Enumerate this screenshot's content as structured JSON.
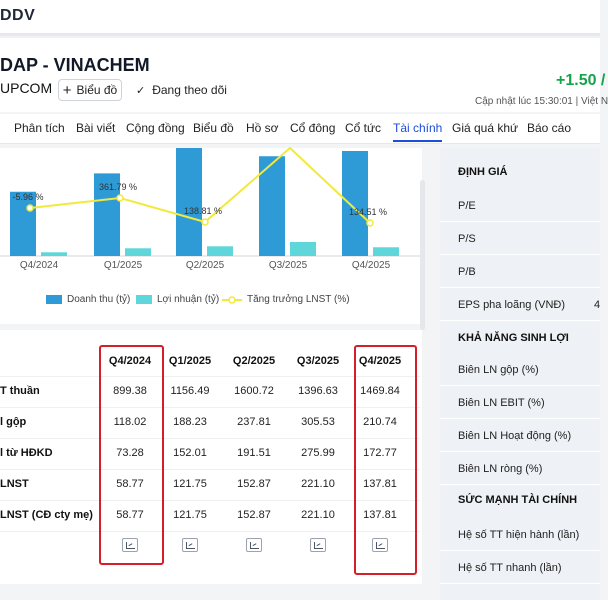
{
  "topbar": {
    "ticker": "DDV"
  },
  "header": {
    "company": "DAP - VINACHEM",
    "exchange": "UPCOM",
    "chart_button": "Biểu đồ",
    "follow_label": "Đang theo dõi",
    "price_change": "+1.50 /",
    "updated": "Cập nhật lúc  15:30:01 | Việt N"
  },
  "tabs": [
    {
      "label": "Phân tích"
    },
    {
      "label": "Bài viết"
    },
    {
      "label": "Cộng đồng"
    },
    {
      "label": "Biểu đồ"
    },
    {
      "label": "Hồ sơ"
    },
    {
      "label": "Cổ đông"
    },
    {
      "label": "Cổ tức"
    },
    {
      "label": "Tài chính",
      "active": true
    },
    {
      "label": "Giá quá khứ"
    },
    {
      "label": "Báo cáo"
    }
  ],
  "chart_data": {
    "type": "bar",
    "categories": [
      "Q4/2024",
      "Q1/2025",
      "Q2/2025",
      "Q3/2025",
      "Q4/2025"
    ],
    "series": [
      {
        "name": "Doanh thu (tỷ)",
        "values": [
          899.38,
          1156.49,
          1600.72,
          1396.63,
          1469.84
        ]
      },
      {
        "name": "Lợi nhuận (tỷ)",
        "values": [
          58.77,
          121.75,
          152.87,
          221.1,
          137.81
        ]
      },
      {
        "name": "Tăng trưởng LNST (%)",
        "values": [
          -5.96,
          361.79,
          138.81,
          null,
          134.51
        ],
        "type": "line"
      }
    ],
    "data_labels": [
      "-5.96 %",
      "361.79 %",
      "138.81 %",
      "134.51 %"
    ],
    "colors": {
      "revenue": "#2e9ad6",
      "profit": "#5ed6da",
      "growth": "#f2e93d"
    }
  },
  "table": {
    "headers": [
      "Q4/2024",
      "Q1/2025",
      "Q2/2025",
      "Q3/2025",
      "Q4/2025"
    ],
    "rows": [
      {
        "label": "T thuần",
        "values": [
          "899.38",
          "1156.49",
          "1600.72",
          "1396.63",
          "1469.84"
        ]
      },
      {
        "label": "l gộp",
        "values": [
          "118.02",
          "188.23",
          "237.81",
          "305.53",
          "210.74"
        ]
      },
      {
        "label": "l từ HĐKD",
        "values": [
          "73.28",
          "152.01",
          "191.51",
          "275.99",
          "172.77"
        ]
      },
      {
        "label": "LNST",
        "values": [
          "58.77",
          "121.75",
          "152.87",
          "221.10",
          "137.81"
        ]
      },
      {
        "label": "LNST (CĐ cty mẹ)",
        "values": [
          "58.77",
          "121.75",
          "152.87",
          "221.10",
          "137.81"
        ]
      }
    ]
  },
  "sidebar": {
    "valuation_title": "ĐỊNH GIÁ",
    "valuation_items": [
      "P/E",
      "P/S",
      "P/B",
      "EPS pha loãng (VNĐ)"
    ],
    "eps_value": "4",
    "profit_title": "KHẢ NĂNG SINH LỢI",
    "profit_items": [
      "Biên LN gộp (%)",
      "Biên LN EBIT (%)",
      "Biên LN Hoạt động (%)",
      "Biên LN ròng (%)"
    ],
    "strength_title": "SỨC MẠNH TÀI CHÍNH",
    "strength_items": [
      "Hệ số TT hiện hành (lần)",
      "Hệ số TT nhanh (lần)"
    ]
  }
}
